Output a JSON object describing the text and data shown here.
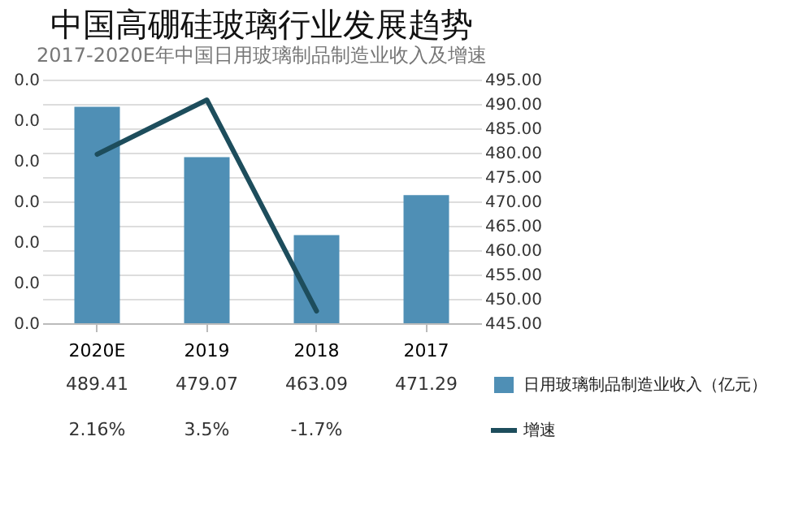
{
  "chart_data": {
    "type": "bar",
    "title": "中国高硼硅玻璃行业发展趋势",
    "subtitle": "2017-2020E年中国日用玻璃制品制造业收入及增速",
    "categories": [
      "2020E",
      "2019",
      "2018",
      "2017"
    ],
    "series": [
      {
        "name": "日用玻璃制品制造业收入（亿元）",
        "axis": "y2",
        "color": "#4f8fb5",
        "values": [
          489.41,
          479.07,
          463.09,
          471.29
        ],
        "value_labels": [
          "489.41",
          "479.07",
          "463.09",
          "471.29"
        ]
      },
      {
        "name": "增速",
        "type": "line",
        "color": "#1d4d5c",
        "values": [
          0.0216,
          0.035,
          -0.017,
          null
        ],
        "value_labels": [
          "2.16%",
          "3.5%",
          "-1.7%",
          null
        ]
      }
    ],
    "ylim": [
      -0.02,
      0.04
    ],
    "yticks": [
      {
        "value": -0.02,
        "label": "0.0"
      },
      {
        "value": -0.01,
        "label": "0.0"
      },
      {
        "value": 0,
        "label": "0.0"
      },
      {
        "value": 0.01,
        "label": "0.0"
      },
      {
        "value": 0.02,
        "label": "0.0"
      },
      {
        "value": 0.03,
        "label": "0.0"
      },
      {
        "value": 0.04,
        "label": "0.0"
      }
    ],
    "y2lim": [
      445,
      495
    ],
    "y2ticks": [
      {
        "value": 445,
        "label": "445.00"
      },
      {
        "value": 450,
        "label": "450.00"
      },
      {
        "value": 455,
        "label": "455.00"
      },
      {
        "value": 460,
        "label": "460.00"
      },
      {
        "value": 465,
        "label": "465.00"
      },
      {
        "value": 470,
        "label": "470.00"
      },
      {
        "value": 475,
        "label": "475.00"
      },
      {
        "value": 480,
        "label": "480.00"
      },
      {
        "value": 485,
        "label": "485.00"
      },
      {
        "value": 490,
        "label": "490.00"
      },
      {
        "value": 495,
        "label": "495.00"
      }
    ],
    "grid": true,
    "legend": "bottom right"
  }
}
